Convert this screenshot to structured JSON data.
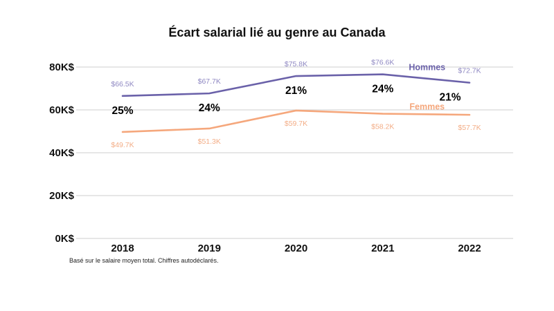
{
  "chart_data": {
    "type": "line",
    "title": "Écart salarial lié au genre au Canada",
    "footnote": "Basé sur le salaire moyen total. Chiffres autodéclarés.",
    "x": [
      "2018",
      "2019",
      "2020",
      "2021",
      "2022"
    ],
    "series": [
      {
        "name": "Hommes",
        "color": "#6a61a9",
        "label_color": "#8f88c2",
        "values": [
          66.5,
          67.7,
          75.8,
          76.6,
          72.7
        ],
        "labels": [
          "$66.5K",
          "$67.7K",
          "$75.8K",
          "$76.6K",
          "$72.7K"
        ]
      },
      {
        "name": "Femmes",
        "color": "#f5a77c",
        "label_color": "#f3ad86",
        "values": [
          49.7,
          51.3,
          59.7,
          58.2,
          57.7
        ],
        "labels": [
          "$49.7K",
          "$51.3K",
          "$59.7K",
          "$58.2K",
          "$57.7K"
        ]
      }
    ],
    "gap_labels": [
      "25%",
      "24%",
      "21%",
      "24%",
      "21%"
    ],
    "y_ticks": [
      {
        "value": 0,
        "label": "0K$"
      },
      {
        "value": 20,
        "label": "20K$"
      },
      {
        "value": 40,
        "label": "40K$"
      },
      {
        "value": 60,
        "label": "60K$"
      },
      {
        "value": 80,
        "label": "80K$"
      }
    ],
    "ylim": [
      0,
      80
    ],
    "grid": true,
    "grid_color": "#d7d7d7",
    "text_color": "#111111",
    "legend_position": "inline-end-labels"
  }
}
